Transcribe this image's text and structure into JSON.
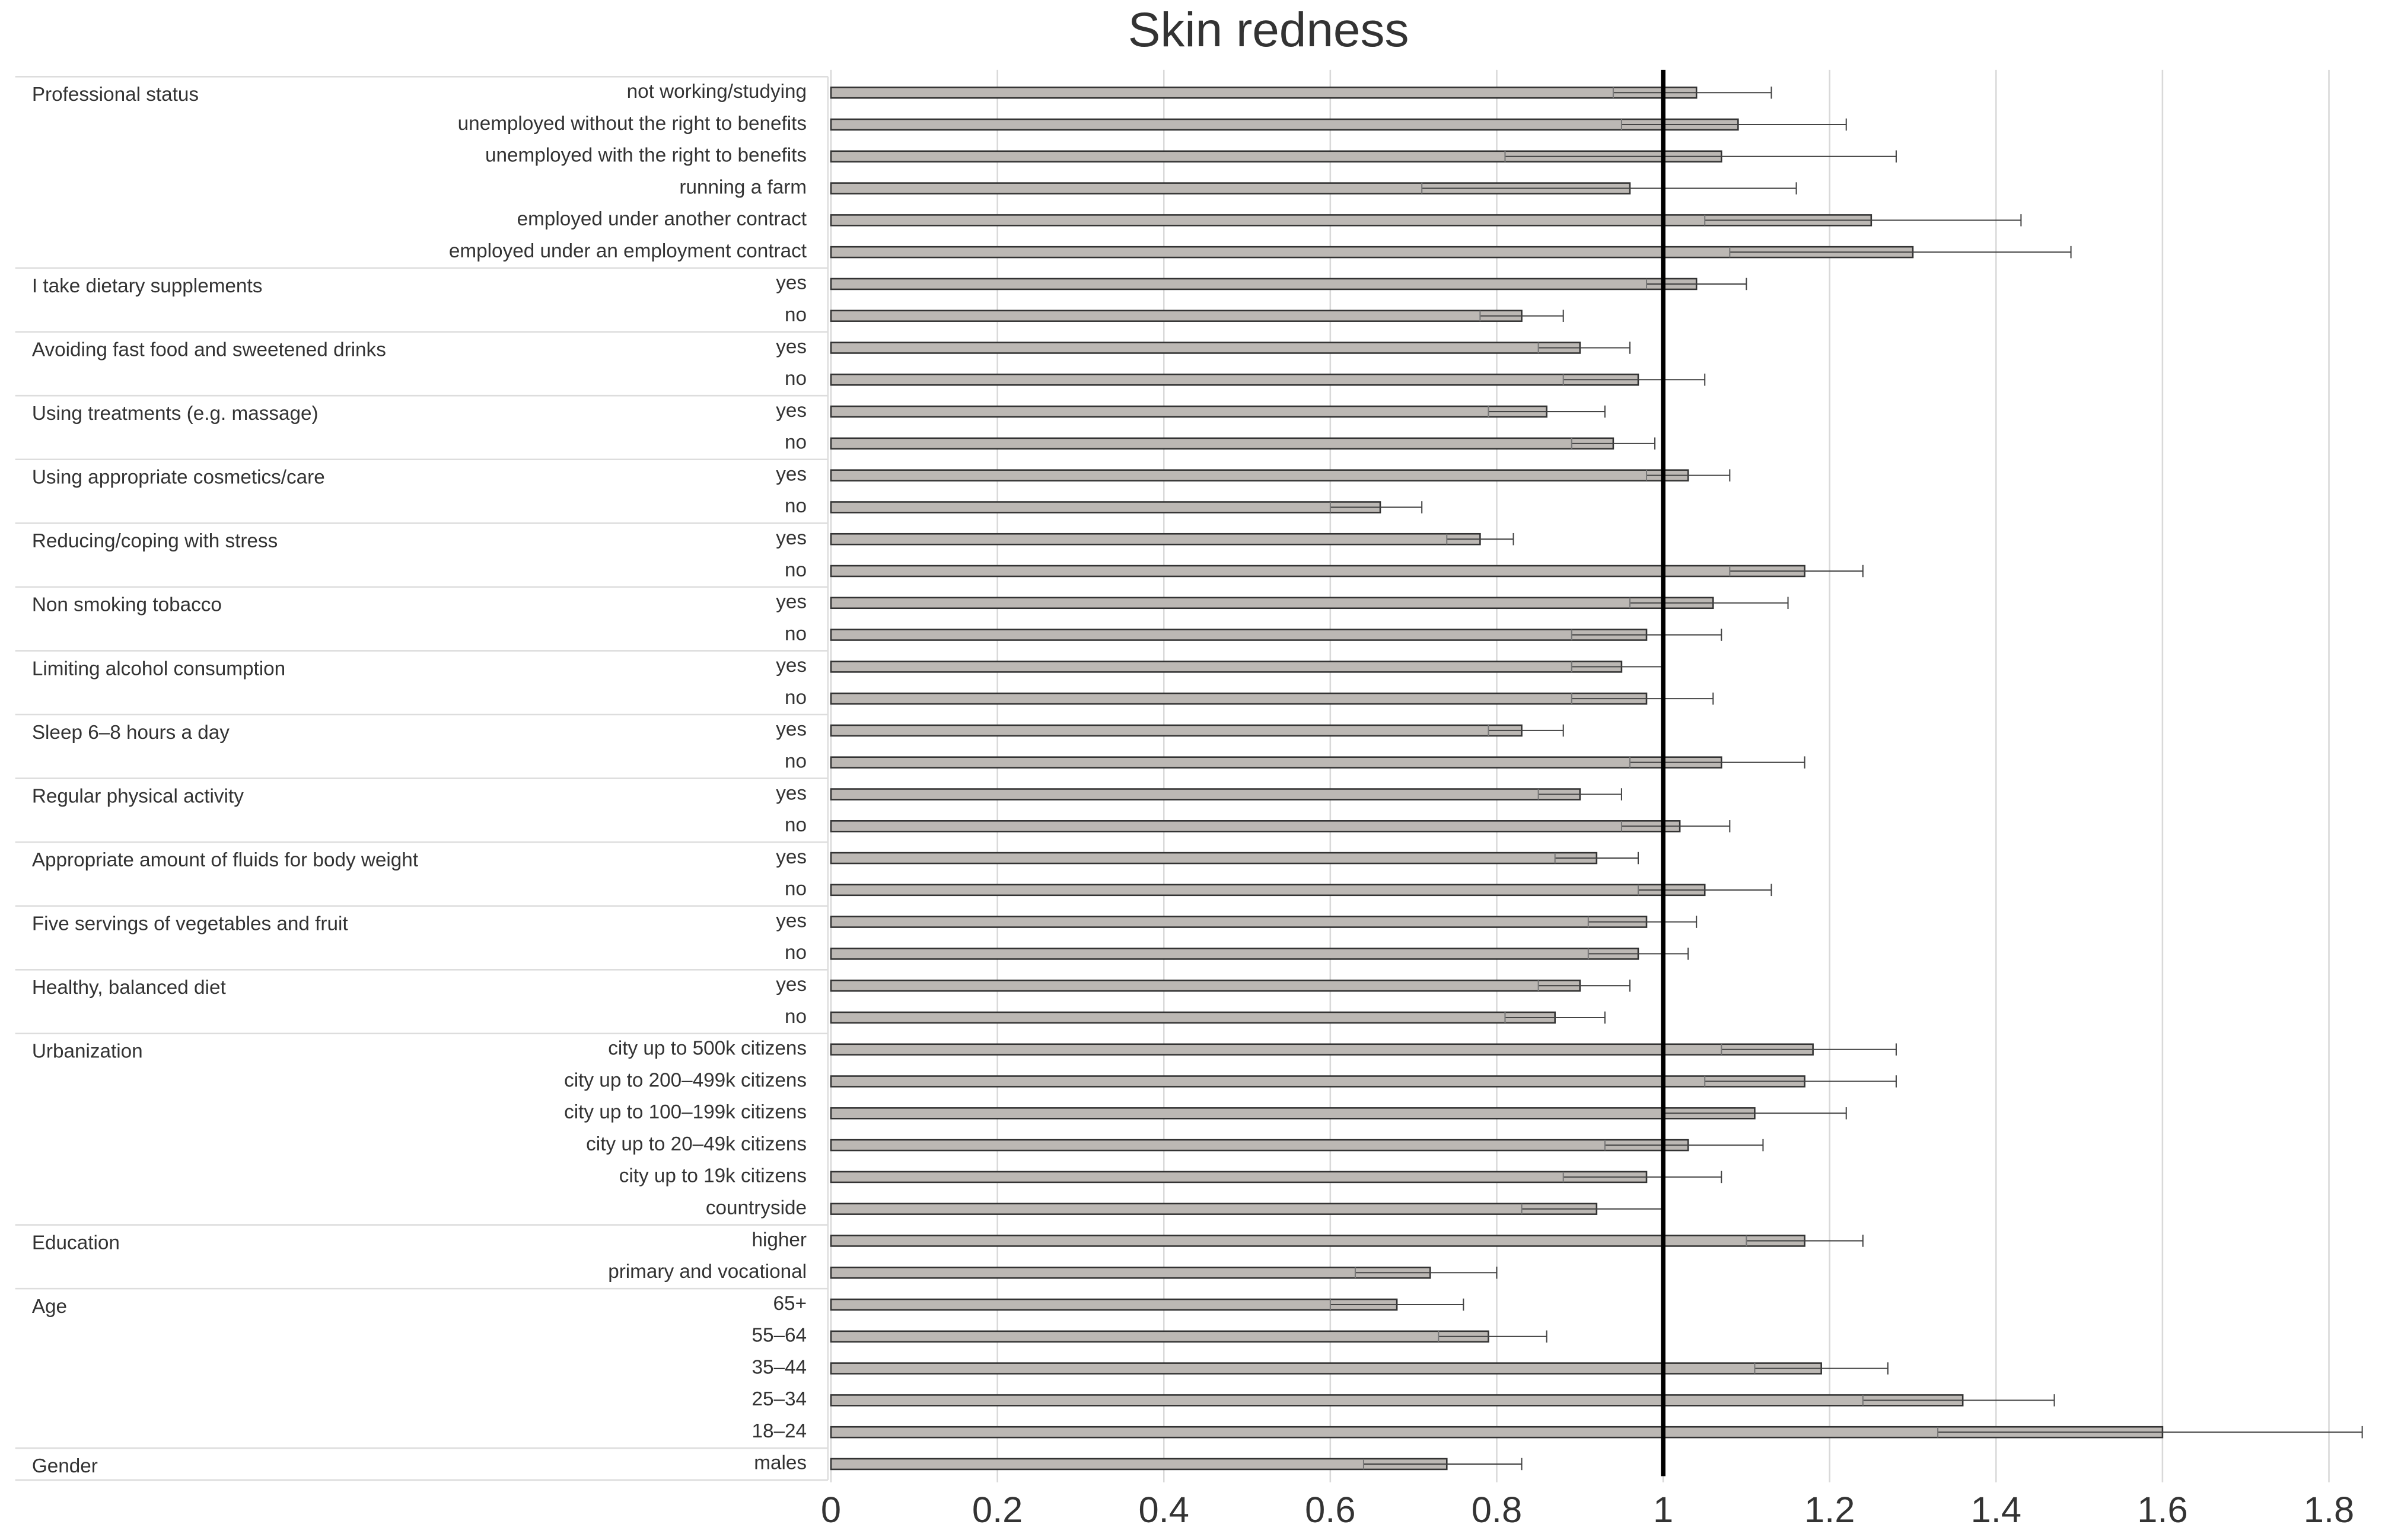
{
  "chart_data": {
    "type": "errorbar-hbar",
    "title": "Skin redness",
    "xlim": [
      0,
      1.84
    ],
    "xticks": [
      0,
      0.2,
      0.4,
      0.6,
      0.8,
      1,
      1.2,
      1.4,
      1.6,
      1.8
    ],
    "grid": true,
    "reference_line": 1,
    "color": "#bcb8b4",
    "groups": [
      {
        "name": "Professional status",
        "categories": [
          "not working/studying",
          "unemployed without the right to benefits",
          "unemployed with the right to benefits",
          "running a farm",
          "employed under another contract",
          "employed under an employment contract"
        ],
        "values": [
          1.04,
          1.09,
          1.07,
          0.96,
          1.25,
          1.3
        ],
        "lower": [
          0.94,
          0.95,
          0.81,
          0.71,
          1.05,
          1.08
        ],
        "upper": [
          1.13,
          1.22,
          1.28,
          1.16,
          1.43,
          1.49
        ]
      },
      {
        "name": "I take dietary supplements",
        "categories": [
          "yes",
          "no"
        ],
        "values": [
          1.04,
          0.83
        ],
        "lower": [
          0.98,
          0.78
        ],
        "upper": [
          1.1,
          0.88
        ]
      },
      {
        "name": "Avoiding fast food and sweetened drinks",
        "categories": [
          "yes",
          "no"
        ],
        "values": [
          0.9,
          0.97
        ],
        "lower": [
          0.85,
          0.88
        ],
        "upper": [
          0.96,
          1.05
        ]
      },
      {
        "name": "Using treatments (e.g. massage)",
        "categories": [
          "yes",
          "no"
        ],
        "values": [
          0.86,
          0.94
        ],
        "lower": [
          0.79,
          0.89
        ],
        "upper": [
          0.93,
          0.99
        ]
      },
      {
        "name": "Using appropriate cosmetics/care",
        "categories": [
          "yes",
          "no"
        ],
        "values": [
          1.03,
          0.66
        ],
        "lower": [
          0.98,
          0.6
        ],
        "upper": [
          1.08,
          0.71
        ]
      },
      {
        "name": "Reducing/coping with stress",
        "categories": [
          "yes",
          "no"
        ],
        "values": [
          0.78,
          1.17
        ],
        "lower": [
          0.74,
          1.08
        ],
        "upper": [
          0.82,
          1.24
        ]
      },
      {
        "name": "Non smoking tobacco",
        "categories": [
          "yes",
          "no"
        ],
        "values": [
          1.06,
          0.98
        ],
        "lower": [
          0.96,
          0.89
        ],
        "upper": [
          1.15,
          1.07
        ]
      },
      {
        "name": "Limiting alcohol consumption",
        "categories": [
          "yes",
          "no"
        ],
        "values": [
          0.95,
          0.98
        ],
        "lower": [
          0.89,
          0.89
        ],
        "upper": [
          1.0,
          1.06
        ]
      },
      {
        "name": "Sleep 6–8 hours a day",
        "categories": [
          "yes",
          "no"
        ],
        "values": [
          0.83,
          1.07
        ],
        "lower": [
          0.79,
          0.96
        ],
        "upper": [
          0.88,
          1.17
        ]
      },
      {
        "name": "Regular physical activity",
        "categories": [
          "yes",
          "no"
        ],
        "values": [
          0.9,
          1.02
        ],
        "lower": [
          0.85,
          0.95
        ],
        "upper": [
          0.95,
          1.08
        ]
      },
      {
        "name": "Appropriate amount of fluids for body weight",
        "categories": [
          "yes",
          "no"
        ],
        "values": [
          0.92,
          1.05
        ],
        "lower": [
          0.87,
          0.97
        ],
        "upper": [
          0.97,
          1.13
        ]
      },
      {
        "name": "Five servings of vegetables and fruit",
        "categories": [
          "yes",
          "no"
        ],
        "values": [
          0.98,
          0.97
        ],
        "lower": [
          0.91,
          0.91
        ],
        "upper": [
          1.04,
          1.03
        ]
      },
      {
        "name": "Healthy, balanced diet",
        "categories": [
          "yes",
          "no"
        ],
        "values": [
          0.9,
          0.87
        ],
        "lower": [
          0.85,
          0.81
        ],
        "upper": [
          0.96,
          0.93
        ]
      },
      {
        "name": "Urbanization",
        "categories": [
          "city up to 500k citizens",
          "city up to 200–499k citizens",
          "city up to 100–199k citizens",
          "city up to 20–49k citizens",
          "city up to 19k citizens",
          "countryside"
        ],
        "values": [
          1.18,
          1.17,
          1.11,
          1.03,
          0.98,
          0.92
        ],
        "lower": [
          1.07,
          1.05,
          1.0,
          0.93,
          0.88,
          0.83
        ],
        "upper": [
          1.28,
          1.28,
          1.22,
          1.12,
          1.07,
          1.0
        ]
      },
      {
        "name": "Education",
        "categories": [
          "higher",
          "primary and vocational"
        ],
        "values": [
          1.17,
          0.72
        ],
        "lower": [
          1.1,
          0.63
        ],
        "upper": [
          1.24,
          0.8
        ]
      },
      {
        "name": "Age",
        "categories": [
          "65+",
          "55–64",
          "35–44",
          "25–34",
          "18–24"
        ],
        "values": [
          0.68,
          0.79,
          1.19,
          1.36,
          1.6
        ],
        "lower": [
          0.6,
          0.73,
          1.11,
          1.24,
          1.33
        ],
        "upper": [
          0.76,
          0.86,
          1.27,
          1.47,
          1.84
        ]
      },
      {
        "name": "Gender",
        "categories": [
          "males"
        ],
        "values": [
          0.74
        ],
        "lower": [
          0.64
        ],
        "upper": [
          0.83
        ]
      }
    ]
  }
}
